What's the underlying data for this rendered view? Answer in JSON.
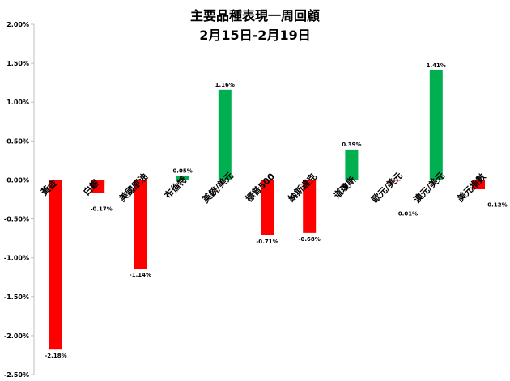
{
  "chart_data": {
    "type": "bar",
    "title": "主要品種表現一周回顧",
    "subtitle": "2月15日-2月19日",
    "categories": [
      "黃金",
      "白銀",
      "美國原油",
      "布倫特",
      "英鎊/美元",
      "標普500",
      "納斯達克",
      "道瓊斯",
      "歐元/美元",
      "澳元/美元",
      "美元指數"
    ],
    "values": [
      -2.18,
      -0.17,
      -1.14,
      0.05,
      1.16,
      -0.71,
      -0.68,
      0.39,
      -0.01,
      1.41,
      -0.12
    ],
    "value_labels": [
      "-2.18%",
      "-0.17%",
      "-1.14%",
      "0.05%",
      "1.16%",
      "-0.71%",
      "-0.68%",
      "0.39%",
      "-0.01%",
      "1.41%",
      "-0.12%"
    ],
    "ylim": [
      -2.5,
      2.0
    ],
    "yticks": [
      2.0,
      1.5,
      1.0,
      0.5,
      0.0,
      -0.5,
      -1.0,
      -1.5,
      -2.0,
      -2.5
    ],
    "ytick_labels": [
      "2.00%",
      "1.50%",
      "1.00%",
      "0.50%",
      "0.00%",
      "-0.50%",
      "-1.00%",
      "-1.50%",
      "-2.00%",
      "-2.50%"
    ],
    "colors": {
      "positive": "#00b050",
      "negative": "#ff0000"
    },
    "grid": false,
    "legend": "none"
  }
}
